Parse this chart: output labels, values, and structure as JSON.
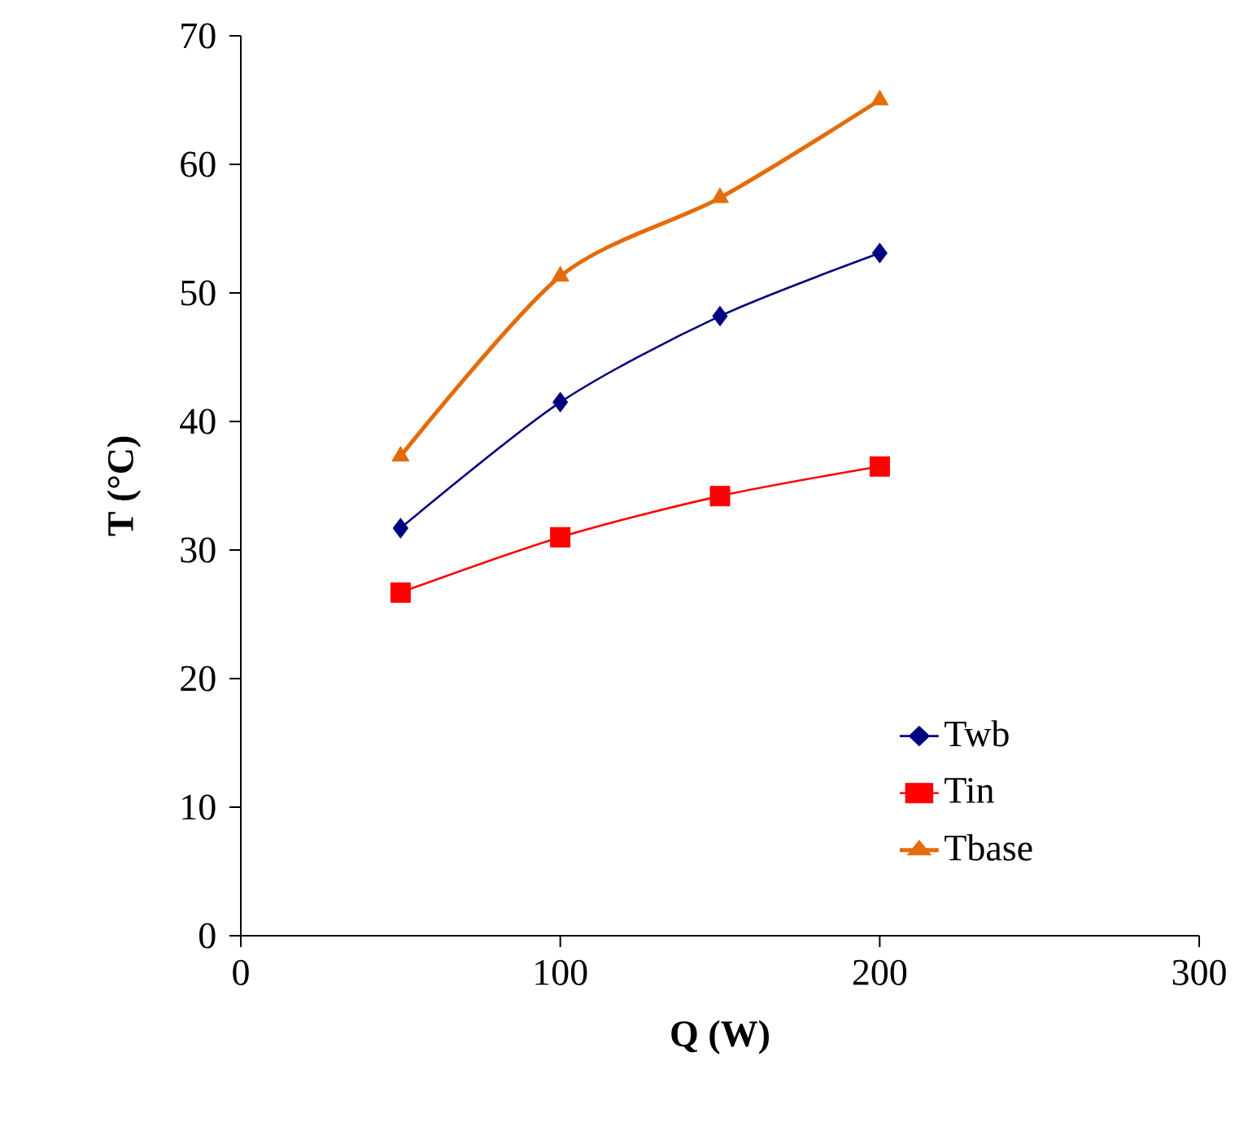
{
  "chart_data": {
    "type": "line",
    "xlabel": "Q (W)",
    "ylabel": "T (°C)",
    "x": [
      50,
      100,
      150,
      200
    ],
    "series": [
      {
        "name": "Twb",
        "color": "#000080",
        "marker": "diamond",
        "values": [
          31.7,
          41.5,
          48.2,
          53.1
        ]
      },
      {
        "name": "Tin",
        "color": "#ff0000",
        "marker": "square",
        "values": [
          26.7,
          31.0,
          34.2,
          36.5
        ]
      },
      {
        "name": "Tbase",
        "color": "#e46c0a",
        "marker": "triangle",
        "values": [
          37.3,
          51.3,
          57.4,
          65.0
        ]
      }
    ],
    "xlim": [
      0,
      300
    ],
    "xticks": [
      0,
      100,
      200,
      300
    ],
    "ylim": [
      0,
      70
    ],
    "yticks": [
      0,
      10,
      20,
      30,
      40,
      50,
      60,
      70
    ],
    "grid": false,
    "legend": "bottom right",
    "line_style": "solid"
  }
}
